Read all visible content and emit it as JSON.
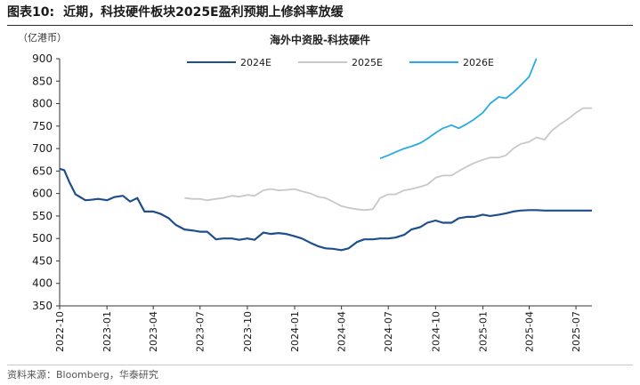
{
  "header": {
    "figure_label": "图表10:",
    "figure_title": "近期，科技硬件板块2025E盈利预期上修斜率放缓"
  },
  "source": "资料来源：Bloomberg，华泰研究",
  "colors": {
    "2024E": "#1f4e8c",
    "2025E": "#c8c8c8",
    "2026E": "#29abe2"
  },
  "chart_data": {
    "type": "line",
    "title": "海外中资股-科技硬件",
    "ylabel": "（亿港币）",
    "xlabel": "",
    "ylim": [
      350,
      900
    ],
    "yticks": [
      350,
      400,
      450,
      500,
      550,
      600,
      650,
      700,
      750,
      800,
      850,
      900
    ],
    "xlim": [
      "2022-10",
      "2025-08"
    ],
    "xticks": [
      "2022-10",
      "2023-01",
      "2023-04",
      "2023-07",
      "2023-10",
      "2024-01",
      "2024-04",
      "2024-07",
      "2024-10",
      "2025-01",
      "2025-04",
      "2025-07"
    ],
    "legend_position": "top",
    "grid": false,
    "series": [
      {
        "name": "2024E",
        "x": [
          "2022-10-01",
          "2022-10-10",
          "2022-10-20",
          "2022-11-01",
          "2022-11-10",
          "2022-11-20",
          "2022-12-01",
          "2022-12-15",
          "2023-01-01",
          "2023-01-15",
          "2023-02-01",
          "2023-02-15",
          "2023-03-01",
          "2023-03-15",
          "2023-04-01",
          "2023-04-15",
          "2023-05-01",
          "2023-05-15",
          "2023-06-01",
          "2023-06-15",
          "2023-07-01",
          "2023-07-15",
          "2023-08-01",
          "2023-08-15",
          "2023-09-01",
          "2023-09-15",
          "2023-10-01",
          "2023-10-15",
          "2023-11-01",
          "2023-11-15",
          "2023-12-01",
          "2023-12-15",
          "2024-01-01",
          "2024-01-15",
          "2024-02-01",
          "2024-02-15",
          "2024-03-01",
          "2024-03-15",
          "2024-04-01",
          "2024-04-15",
          "2024-05-01",
          "2024-05-15",
          "2024-06-01",
          "2024-06-15",
          "2024-07-01",
          "2024-07-15",
          "2024-08-01",
          "2024-08-15",
          "2024-09-01",
          "2024-09-15",
          "2024-10-01",
          "2024-10-15",
          "2024-11-01",
          "2024-11-15",
          "2024-12-01",
          "2024-12-15",
          "2025-01-01",
          "2025-01-15",
          "2025-02-01",
          "2025-02-15",
          "2025-03-01",
          "2025-03-15",
          "2025-04-01",
          "2025-04-15",
          "2025-05-01",
          "2025-06-01",
          "2025-07-01",
          "2025-08-01"
        ],
        "values": [
          655,
          652,
          625,
          598,
          592,
          585,
          586,
          588,
          585,
          592,
          595,
          582,
          590,
          560,
          560,
          555,
          545,
          530,
          520,
          518,
          515,
          515,
          498,
          500,
          500,
          497,
          500,
          497,
          513,
          510,
          512,
          510,
          505,
          500,
          490,
          483,
          478,
          477,
          474,
          478,
          492,
          498,
          498,
          500,
          500,
          502,
          508,
          520,
          525,
          535,
          540,
          535,
          535,
          545,
          548,
          548,
          553,
          550,
          553,
          556,
          560,
          562,
          563,
          563,
          562,
          562,
          562,
          562
        ]
      },
      {
        "name": "2025E",
        "x": [
          "2023-06-01",
          "2023-06-15",
          "2023-07-01",
          "2023-07-15",
          "2023-08-01",
          "2023-08-15",
          "2023-09-01",
          "2023-09-15",
          "2023-10-01",
          "2023-10-15",
          "2023-11-01",
          "2023-11-15",
          "2023-12-01",
          "2023-12-15",
          "2024-01-01",
          "2024-01-15",
          "2024-02-01",
          "2024-02-15",
          "2024-03-01",
          "2024-03-15",
          "2024-04-01",
          "2024-04-15",
          "2024-05-01",
          "2024-05-15",
          "2024-06-01",
          "2024-06-15",
          "2024-07-01",
          "2024-07-15",
          "2024-08-01",
          "2024-08-15",
          "2024-09-01",
          "2024-09-15",
          "2024-10-01",
          "2024-10-15",
          "2024-11-01",
          "2024-11-15",
          "2024-12-01",
          "2024-12-15",
          "2025-01-01",
          "2025-01-15",
          "2025-02-01",
          "2025-02-15",
          "2025-03-01",
          "2025-03-15",
          "2025-04-01",
          "2025-04-15",
          "2025-05-01",
          "2025-05-15",
          "2025-06-01",
          "2025-06-15",
          "2025-07-01",
          "2025-07-15",
          "2025-08-01"
        ],
        "values": [
          590,
          588,
          588,
          585,
          588,
          590,
          595,
          593,
          597,
          595,
          607,
          610,
          607,
          608,
          610,
          605,
          600,
          593,
          590,
          582,
          572,
          568,
          565,
          563,
          565,
          590,
          598,
          598,
          607,
          610,
          615,
          620,
          635,
          640,
          640,
          650,
          660,
          668,
          675,
          680,
          680,
          685,
          700,
          710,
          715,
          725,
          720,
          740,
          755,
          765,
          780,
          790,
          790
        ]
      },
      {
        "name": "2026E",
        "x": [
          "2024-06-15",
          "2024-07-01",
          "2024-07-15",
          "2024-08-01",
          "2024-08-15",
          "2024-09-01",
          "2024-09-15",
          "2024-10-01",
          "2024-10-15",
          "2024-11-01",
          "2024-11-15",
          "2024-12-01",
          "2024-12-15",
          "2025-01-01",
          "2025-01-15",
          "2025-02-01",
          "2025-02-15",
          "2025-03-01",
          "2025-03-15",
          "2025-04-01",
          "2025-04-15"
        ],
        "values": [
          678,
          685,
          692,
          700,
          705,
          712,
          722,
          735,
          745,
          752,
          745,
          755,
          765,
          780,
          800,
          815,
          812,
          825,
          840,
          860,
          900
        ]
      }
    ]
  }
}
